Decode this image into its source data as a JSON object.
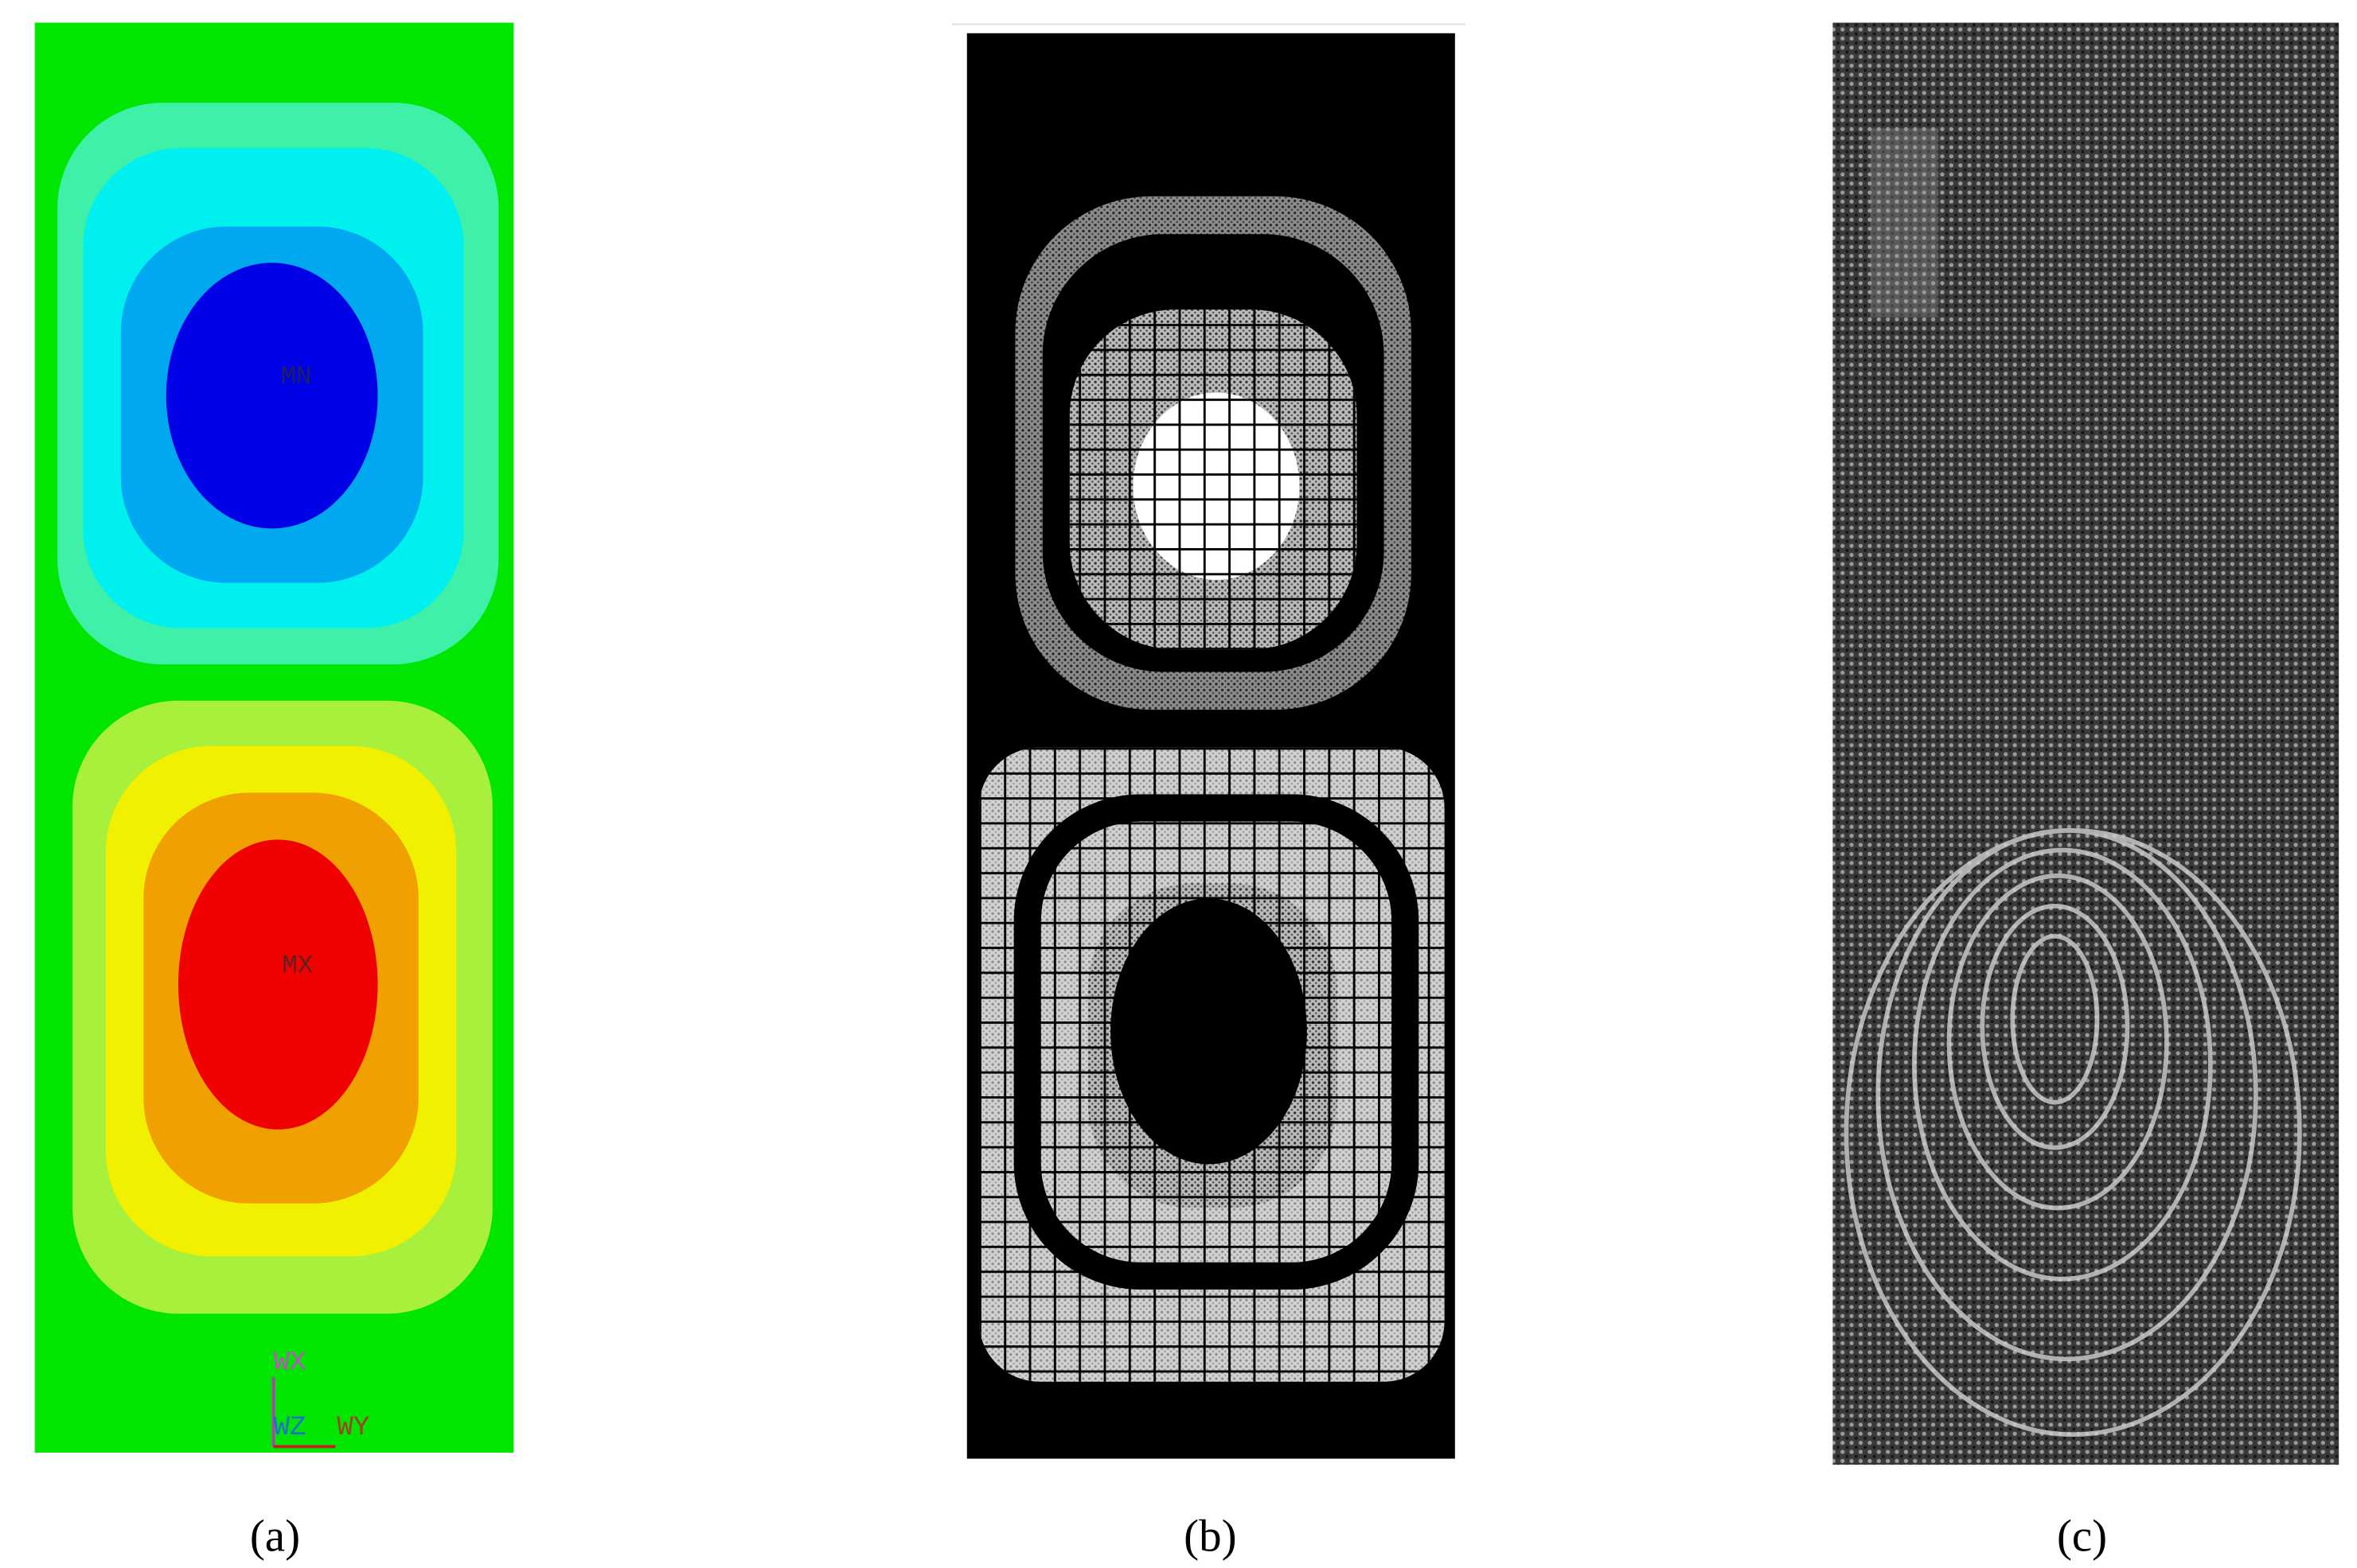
{
  "panels": [
    {
      "label": "(a)",
      "annotations": [
        "MN",
        "MX",
        "WX",
        "WZ",
        "WY"
      ]
    },
    {
      "label": "(b)"
    },
    {
      "label": "(c)"
    }
  ]
}
